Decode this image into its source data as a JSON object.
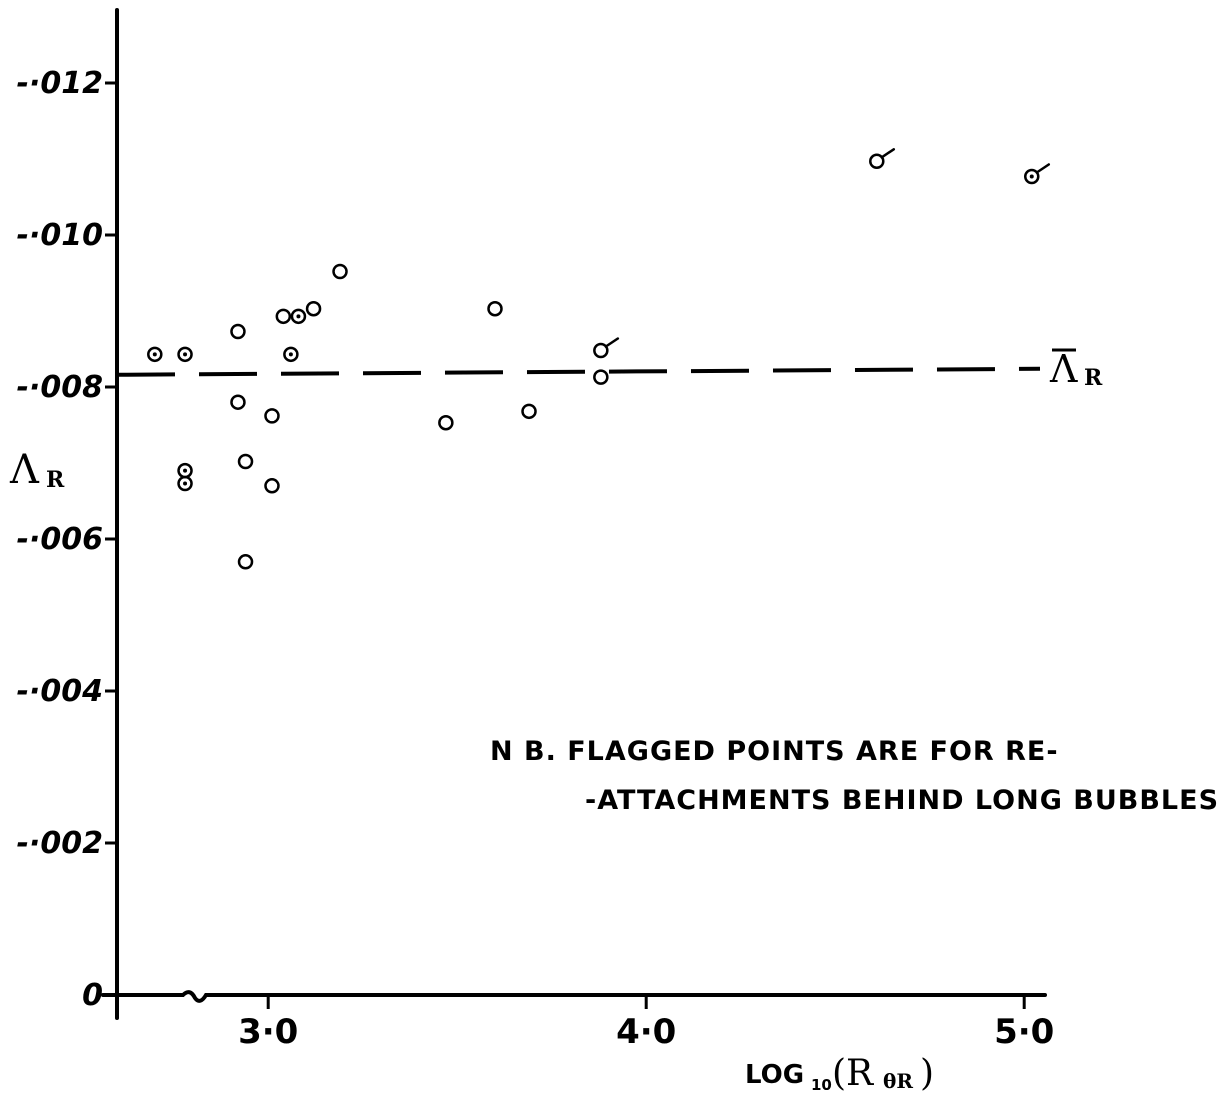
{
  "chart_data": {
    "type": "scatter",
    "xlabel": "LOG",
    "xlabel_sub": "10",
    "xlabel_arg": "(R",
    "xlabel_arg_sub": "θR",
    "xlabel_close": ")",
    "ylabel": "Λ",
    "ylabel_sub": "R",
    "mean_label": "Λ",
    "mean_label_sub": "R",
    "xlim": [
      2.6,
      5.05
    ],
    "ylim": [
      0,
      -0.013
    ],
    "x_ticks": [
      {
        "value": 3.0,
        "label": "3·0"
      },
      {
        "value": 4.0,
        "label": "4·0"
      },
      {
        "value": 5.0,
        "label": "5·0"
      }
    ],
    "y_ticks": [
      {
        "value": 0,
        "label": "0"
      },
      {
        "value": -0.002,
        "label": "-·002"
      },
      {
        "value": -0.004,
        "label": "-·004"
      },
      {
        "value": -0.006,
        "label": "-·006"
      },
      {
        "value": -0.008,
        "label": "-·008"
      },
      {
        "value": -0.01,
        "label": "-·010"
      },
      {
        "value": -0.012,
        "label": "-·012"
      }
    ],
    "mean_line": {
      "value": -0.0082
    },
    "annotation": [
      "N B.  FLAGGED  POINTS  ARE  FOR  RE-",
      "-ATTACHMENTS  BEHIND  LONG  BUBBLES."
    ],
    "points": [
      {
        "x": 2.7,
        "y": -0.00843,
        "dot": true,
        "flag": false
      },
      {
        "x": 2.78,
        "y": -0.00843,
        "dot": true,
        "flag": false
      },
      {
        "x": 2.78,
        "y": -0.0069,
        "dot": true,
        "flag": false
      },
      {
        "x": 2.78,
        "y": -0.00673,
        "dot": true,
        "flag": false
      },
      {
        "x": 2.92,
        "y": -0.00873,
        "dot": false,
        "flag": false
      },
      {
        "x": 2.92,
        "y": -0.0078,
        "dot": false,
        "flag": false
      },
      {
        "x": 2.94,
        "y": -0.00702,
        "dot": false,
        "flag": false
      },
      {
        "x": 2.94,
        "y": -0.0057,
        "dot": false,
        "flag": false
      },
      {
        "x": 3.01,
        "y": -0.00762,
        "dot": false,
        "flag": false
      },
      {
        "x": 3.01,
        "y": -0.0067,
        "dot": false,
        "flag": false
      },
      {
        "x": 3.04,
        "y": -0.00893,
        "dot": false,
        "flag": false
      },
      {
        "x": 3.06,
        "y": -0.00843,
        "dot": true,
        "flag": false
      },
      {
        "x": 3.08,
        "y": -0.00893,
        "dot": true,
        "flag": false
      },
      {
        "x": 3.12,
        "y": -0.00903,
        "dot": false,
        "flag": false
      },
      {
        "x": 3.19,
        "y": -0.00952,
        "dot": false,
        "flag": false
      },
      {
        "x": 3.47,
        "y": -0.00753,
        "dot": false,
        "flag": false
      },
      {
        "x": 3.6,
        "y": -0.00903,
        "dot": false,
        "flag": false
      },
      {
        "x": 3.69,
        "y": -0.00768,
        "dot": false,
        "flag": false
      },
      {
        "x": 3.88,
        "y": -0.00813,
        "dot": false,
        "flag": false
      },
      {
        "x": 3.88,
        "y": -0.00848,
        "dot": false,
        "flag": true
      },
      {
        "x": 4.61,
        "y": -0.01097,
        "dot": false,
        "flag": true
      },
      {
        "x": 5.02,
        "y": -0.01077,
        "dot": true,
        "flag": true
      }
    ]
  }
}
